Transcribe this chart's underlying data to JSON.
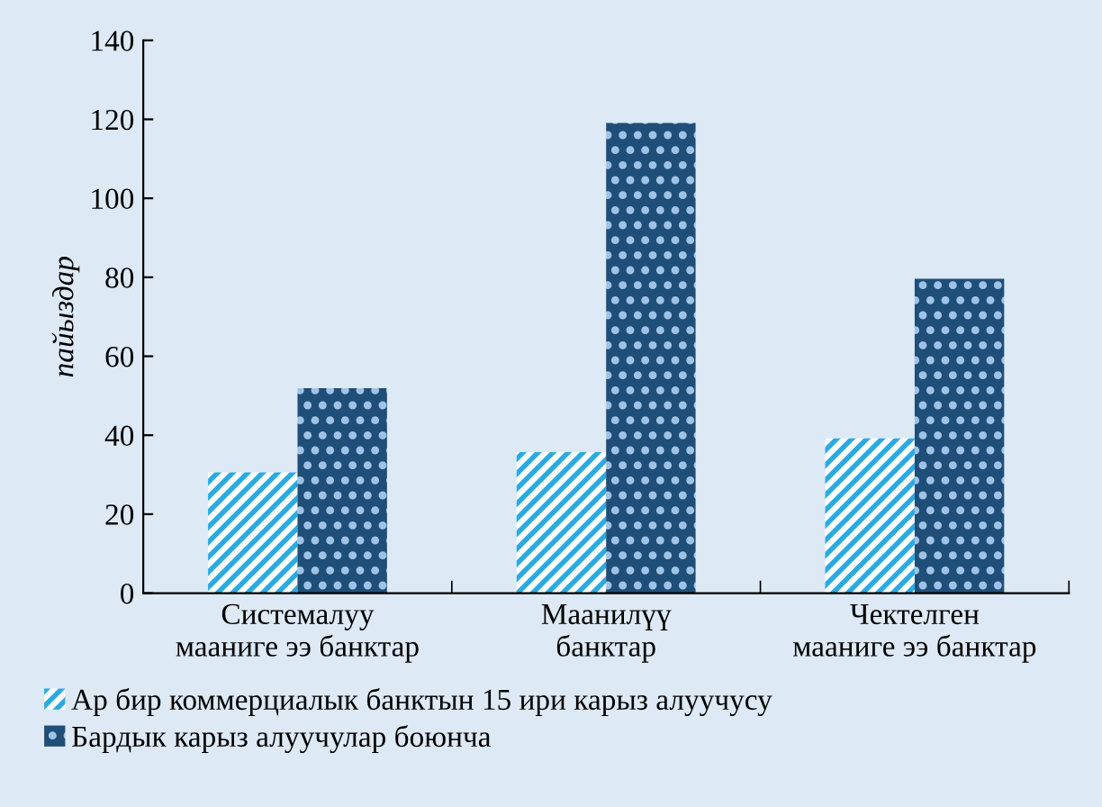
{
  "chart_data": {
    "type": "bar",
    "categories": [
      "Системалуу\nмааниге ээ банктар",
      "Маанилүү\nбанктар",
      "Чектелген\nмааниге ээ банктар"
    ],
    "ylabel": "пайыздар",
    "series": [
      {
        "name": "Ар бир коммерциалык банктын 15 ири карыз алуучусу",
        "color": "#29abe2",
        "values": [
          30.6,
          35.7,
          39.2
        ]
      },
      {
        "name": "Бардык карыз алуучулар боюнча",
        "color": "#1f4e79",
        "values": [
          51.9,
          119.1,
          79.6
        ]
      }
    ],
    "ylim": [
      0,
      140
    ],
    "yticks": [
      0,
      20,
      40,
      60,
      80,
      100,
      120,
      140
    ],
    "grid": false,
    "legend": "bottom"
  }
}
